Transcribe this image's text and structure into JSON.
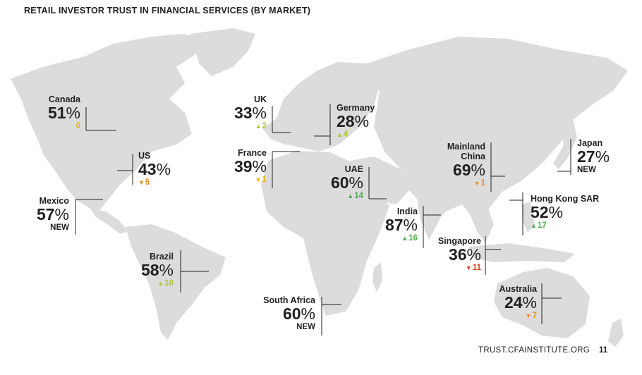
{
  "title": "RETAIL INVESTOR TRUST IN FINANCIAL SERVICES (BY MARKET)",
  "colors": {
    "land": "#dcdcdc",
    "text": "#231f20",
    "change_neutral": "#e8b400",
    "change_up_small": "#b5c334",
    "change_up_large": "#4caf50",
    "change_down_small": "#f08a24",
    "change_down_large": "#e2401c"
  },
  "markets": {
    "canada": {
      "name": "Canada",
      "pct": "51",
      "sign": "%",
      "change": "0",
      "arrow": ""
    },
    "us": {
      "name": "US",
      "pct": "43",
      "sign": "%",
      "change": "5",
      "arrow": "▼"
    },
    "mexico": {
      "name": "Mexico",
      "pct": "57",
      "sign": "%",
      "new": "NEW"
    },
    "brazil": {
      "name": "Brazil",
      "pct": "58",
      "sign": "%",
      "change": "10",
      "arrow": "▲"
    },
    "uk": {
      "name": "UK",
      "pct": "33",
      "sign": "%",
      "change": "2",
      "arrow": "▲"
    },
    "france": {
      "name": "France",
      "pct": "39",
      "sign": "%",
      "change": "1",
      "arrow": "▼"
    },
    "germany": {
      "name": "Germany",
      "pct": "28",
      "sign": "%",
      "change": "4",
      "arrow": "▲"
    },
    "uae": {
      "name": "UAE",
      "pct": "60",
      "sign": "%",
      "change": "14",
      "arrow": "▲"
    },
    "south_africa": {
      "name": "South Africa",
      "pct": "60",
      "sign": "%",
      "new": "NEW"
    },
    "india": {
      "name": "India",
      "pct": "87",
      "sign": "%",
      "change": "16",
      "arrow": "▲"
    },
    "china": {
      "name_line1": "Mainland",
      "name_line2": "China",
      "pct": "69",
      "sign": "%",
      "change": "1",
      "arrow": "▼"
    },
    "japan": {
      "name": "Japan",
      "pct": "27",
      "sign": "%",
      "new": "NEW"
    },
    "hong_kong": {
      "name": "Hong Kong SAR",
      "pct": "52",
      "sign": "%",
      "change": "17",
      "arrow": "▲"
    },
    "singapore": {
      "name": "Singapore",
      "pct": "36",
      "sign": "%",
      "change": "11",
      "arrow": "▼"
    },
    "australia": {
      "name": "Australia",
      "pct": "24",
      "sign": "%",
      "change": "7",
      "arrow": "▼"
    }
  },
  "footer": {
    "url": "TRUST.CFAINSTITUTE.ORG",
    "page": "11"
  }
}
